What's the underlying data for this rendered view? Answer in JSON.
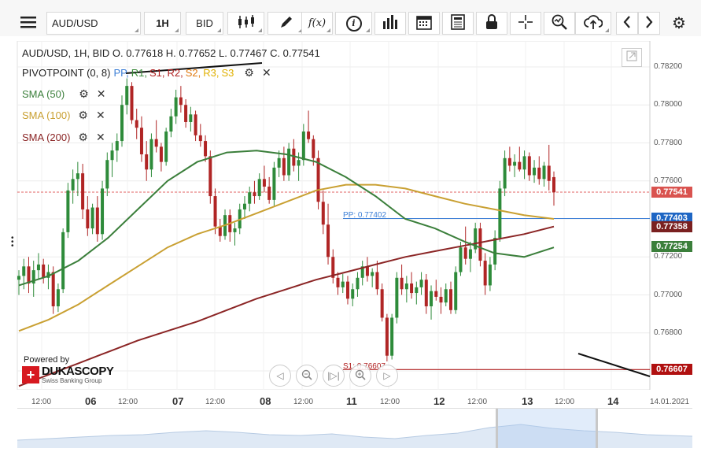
{
  "toolbar": {
    "symbol": "AUD/USD",
    "timeframe": "1H",
    "side": "BID",
    "fx_label": "f(x)",
    "info_label": "i"
  },
  "header": {
    "ohlc": "AUD/USD, 1H, BID   O. 0.77618 H. 0.77652 L. 0.77467 C. 0.77541"
  },
  "indicators": [
    {
      "prefix": "PIVOTPOINT (0, 8)",
      "parts": [
        "PP",
        "R1",
        "S1",
        "R2",
        "S2",
        "R3",
        "S3"
      ],
      "colors": [
        "#3d7fd6",
        "#3a8a3a",
        "#b02020",
        "#b02020",
        "#e07a10",
        "#e0b000",
        "#e0b000"
      ]
    },
    {
      "label": "SMA (50)",
      "color": "#3b7f3b"
    },
    {
      "label": "SMA (100)",
      "color": "#c9a032"
    },
    {
      "label": "SMA (200)",
      "color": "#8b2525"
    }
  ],
  "price_axis": [
    "0.78200",
    "0.78000",
    "0.77800",
    "0.77600",
    "0.77400",
    "0.77200",
    "0.77000",
    "0.76800",
    "0.76600"
  ],
  "price_labels": [
    {
      "value": "0.77541",
      "color": "#d9534f"
    },
    {
      "value": "0.77403",
      "color": "#1e66c4"
    },
    {
      "value": "0.77358",
      "color": "#7a2020"
    },
    {
      "value": "0.77254",
      "color": "#3b7f3b"
    },
    {
      "value": "0.76607",
      "color": "#b01010"
    }
  ],
  "pivot_labels": {
    "pp": "PP: 0.77402",
    "s1": "S1: 0.76607"
  },
  "date_axis": [
    {
      "text": "12:00",
      "bold": false
    },
    {
      "text": "06",
      "bold": true
    },
    {
      "text": "12:00",
      "bold": false
    },
    {
      "text": "07",
      "bold": true
    },
    {
      "text": "12:00",
      "bold": false
    },
    {
      "text": "08",
      "bold": true
    },
    {
      "text": "12:00",
      "bold": false
    },
    {
      "text": "11",
      "bold": true
    },
    {
      "text": "12:00",
      "bold": false
    },
    {
      "text": "12",
      "bold": true
    },
    {
      "text": "12:00",
      "bold": false
    },
    {
      "text": "13",
      "bold": true
    },
    {
      "text": "12:00",
      "bold": false
    },
    {
      "text": "14",
      "bold": true
    }
  ],
  "date_label": "14.01.2021",
  "logo": {
    "powered": "Powered by",
    "name": "DUKASCOPY",
    "tagline": "Swiss Banking Group"
  },
  "chart_data": {
    "type": "candlestick",
    "ylim": [
      0.7655,
      0.7825
    ],
    "candles": [
      [
        0.7708,
        0.7713,
        0.77,
        0.771
      ],
      [
        0.771,
        0.7719,
        0.7703,
        0.7715
      ],
      [
        0.7715,
        0.772,
        0.7701,
        0.7706
      ],
      [
        0.7706,
        0.7718,
        0.7699,
        0.7713
      ],
      [
        0.7713,
        0.7722,
        0.7708,
        0.7716
      ],
      [
        0.7716,
        0.7719,
        0.7706,
        0.7709
      ],
      [
        0.7709,
        0.7716,
        0.7703,
        0.7712
      ],
      [
        0.7712,
        0.7715,
        0.769,
        0.7694
      ],
      [
        0.7694,
        0.7706,
        0.7691,
        0.7703
      ],
      [
        0.7703,
        0.7735,
        0.7701,
        0.7733
      ],
      [
        0.7733,
        0.7759,
        0.773,
        0.7755
      ],
      [
        0.7755,
        0.7766,
        0.7748,
        0.7761
      ],
      [
        0.7761,
        0.777,
        0.7752,
        0.7764
      ],
      [
        0.7764,
        0.7769,
        0.774,
        0.7745
      ],
      [
        0.7745,
        0.7752,
        0.7731,
        0.7735
      ],
      [
        0.7735,
        0.7748,
        0.7732,
        0.7746
      ],
      [
        0.7746,
        0.7752,
        0.7728,
        0.7732
      ],
      [
        0.7732,
        0.776,
        0.7729,
        0.7756
      ],
      [
        0.7756,
        0.7775,
        0.7752,
        0.7771
      ],
      [
        0.7771,
        0.778,
        0.7762,
        0.7776
      ],
      [
        0.7776,
        0.7785,
        0.777,
        0.7781
      ],
      [
        0.7781,
        0.7805,
        0.7778,
        0.78
      ],
      [
        0.78,
        0.7814,
        0.7795,
        0.781
      ],
      [
        0.781,
        0.7812,
        0.779,
        0.7792
      ],
      [
        0.7792,
        0.7798,
        0.7782,
        0.7788
      ],
      [
        0.7788,
        0.7794,
        0.777,
        0.7774
      ],
      [
        0.7774,
        0.7781,
        0.776,
        0.7766
      ],
      [
        0.7766,
        0.7785,
        0.7762,
        0.7782
      ],
      [
        0.7782,
        0.7792,
        0.7775,
        0.7778
      ],
      [
        0.7778,
        0.778,
        0.7765,
        0.777
      ],
      [
        0.777,
        0.7788,
        0.7768,
        0.7786
      ],
      [
        0.7786,
        0.7798,
        0.7783,
        0.7794
      ],
      [
        0.7794,
        0.7808,
        0.779,
        0.7804
      ],
      [
        0.7804,
        0.781,
        0.7796,
        0.78
      ],
      [
        0.78,
        0.7803,
        0.7788,
        0.7791
      ],
      [
        0.7791,
        0.7799,
        0.7786,
        0.7795
      ],
      [
        0.7795,
        0.7797,
        0.7781,
        0.7784
      ],
      [
        0.7784,
        0.779,
        0.7778,
        0.7781
      ],
      [
        0.7781,
        0.7784,
        0.777,
        0.7773
      ],
      [
        0.7773,
        0.7776,
        0.7748,
        0.7752
      ],
      [
        0.7752,
        0.7756,
        0.7732,
        0.7736
      ],
      [
        0.7736,
        0.774,
        0.7728,
        0.7731
      ],
      [
        0.7731,
        0.7745,
        0.7729,
        0.7742
      ],
      [
        0.7742,
        0.7745,
        0.7728,
        0.7733
      ],
      [
        0.7733,
        0.7738,
        0.7726,
        0.7735
      ],
      [
        0.7735,
        0.7748,
        0.7732,
        0.7745
      ],
      [
        0.7745,
        0.7752,
        0.774,
        0.7748
      ],
      [
        0.7748,
        0.7757,
        0.7744,
        0.7754
      ],
      [
        0.7754,
        0.776,
        0.7748,
        0.7752
      ],
      [
        0.7752,
        0.7764,
        0.775,
        0.7761
      ],
      [
        0.7761,
        0.7768,
        0.7754,
        0.7757
      ],
      [
        0.7757,
        0.7762,
        0.7748,
        0.775
      ],
      [
        0.775,
        0.777,
        0.7747,
        0.7767
      ],
      [
        0.7767,
        0.7776,
        0.7762,
        0.7772
      ],
      [
        0.7772,
        0.7778,
        0.776,
        0.7763
      ],
      [
        0.7763,
        0.778,
        0.776,
        0.7777
      ],
      [
        0.7777,
        0.7782,
        0.7765,
        0.7768
      ],
      [
        0.7768,
        0.7775,
        0.776,
        0.7771
      ],
      [
        0.7771,
        0.779,
        0.7768,
        0.7786
      ],
      [
        0.7786,
        0.7797,
        0.778,
        0.7782
      ],
      [
        0.7782,
        0.7784,
        0.7768,
        0.7772
      ],
      [
        0.7772,
        0.7776,
        0.7745,
        0.7749
      ],
      [
        0.7749,
        0.7755,
        0.7732,
        0.7737
      ],
      [
        0.7737,
        0.7748,
        0.7716,
        0.772
      ],
      [
        0.772,
        0.7724,
        0.7706,
        0.7709
      ],
      [
        0.7709,
        0.7712,
        0.77,
        0.7704
      ],
      [
        0.7704,
        0.7711,
        0.7701,
        0.7707
      ],
      [
        0.7707,
        0.771,
        0.7695,
        0.7698
      ],
      [
        0.7698,
        0.7706,
        0.7694,
        0.7703
      ],
      [
        0.7703,
        0.7712,
        0.7699,
        0.7709
      ],
      [
        0.7709,
        0.7718,
        0.7705,
        0.7715
      ],
      [
        0.7715,
        0.772,
        0.7707,
        0.771
      ],
      [
        0.771,
        0.7714,
        0.7704,
        0.7712
      ],
      [
        0.7712,
        0.7718,
        0.77,
        0.7703
      ],
      [
        0.7703,
        0.7706,
        0.7686,
        0.7688
      ],
      [
        0.7688,
        0.769,
        0.7665,
        0.7668
      ],
      [
        0.7668,
        0.769,
        0.7666,
        0.7688
      ],
      [
        0.7688,
        0.7712,
        0.7685,
        0.7709
      ],
      [
        0.7709,
        0.7716,
        0.77,
        0.7703
      ],
      [
        0.7703,
        0.771,
        0.7696,
        0.7706
      ],
      [
        0.7706,
        0.7712,
        0.7698,
        0.7701
      ],
      [
        0.7701,
        0.7707,
        0.7695,
        0.7704
      ],
      [
        0.7704,
        0.7712,
        0.77,
        0.7708
      ],
      [
        0.7708,
        0.7711,
        0.769,
        0.7694
      ],
      [
        0.7694,
        0.7705,
        0.7687,
        0.7702
      ],
      [
        0.7702,
        0.7708,
        0.7697,
        0.7699
      ],
      [
        0.7699,
        0.7704,
        0.769,
        0.7696
      ],
      [
        0.7696,
        0.7706,
        0.7694,
        0.7703
      ],
      [
        0.7703,
        0.7707,
        0.769,
        0.7692
      ],
      [
        0.7692,
        0.7715,
        0.769,
        0.7712
      ],
      [
        0.7712,
        0.7728,
        0.771,
        0.7725
      ],
      [
        0.7725,
        0.7736,
        0.7716,
        0.7719
      ],
      [
        0.7719,
        0.7728,
        0.7712,
        0.7724
      ],
      [
        0.7724,
        0.7738,
        0.7722,
        0.7735
      ],
      [
        0.7735,
        0.7738,
        0.7715,
        0.7718
      ],
      [
        0.7718,
        0.7722,
        0.77,
        0.7705
      ],
      [
        0.7705,
        0.772,
        0.7702,
        0.7716
      ],
      [
        0.7716,
        0.7734,
        0.7713,
        0.773
      ],
      [
        0.773,
        0.776,
        0.7728,
        0.7756
      ],
      [
        0.7756,
        0.7776,
        0.7752,
        0.7772
      ],
      [
        0.7772,
        0.7778,
        0.7765,
        0.7768
      ],
      [
        0.7768,
        0.7774,
        0.7762,
        0.777
      ],
      [
        0.777,
        0.7778,
        0.7765,
        0.7766
      ],
      [
        0.7766,
        0.7776,
        0.7761,
        0.7773
      ],
      [
        0.7773,
        0.7775,
        0.776,
        0.7763
      ],
      [
        0.7763,
        0.7771,
        0.7759,
        0.7767
      ],
      [
        0.7767,
        0.7773,
        0.7758,
        0.7761
      ],
      [
        0.7761,
        0.777,
        0.7757,
        0.7768
      ],
      [
        0.7768,
        0.7779,
        0.7755,
        0.776
      ],
      [
        0.7762,
        0.7765,
        0.7747,
        0.7754
      ]
    ],
    "sma50": [
      0.7705,
      0.771,
      0.7718,
      0.773,
      0.7745,
      0.776,
      0.777,
      0.7775,
      0.7776,
      0.7774,
      0.777,
      0.7762,
      0.7752,
      0.774,
      0.7735,
      0.7728,
      0.7722,
      0.772,
      0.7725
    ],
    "sma100": [
      0.7681,
      0.7687,
      0.7695,
      0.7705,
      0.7715,
      0.7725,
      0.7732,
      0.7737,
      0.7743,
      0.7749,
      0.7755,
      0.7758,
      0.7758,
      0.7756,
      0.7752,
      0.7748,
      0.7745,
      0.7742,
      0.774
    ],
    "sma200": [
      0.7652,
      0.7658,
      0.7664,
      0.767,
      0.7676,
      0.7681,
      0.7686,
      0.7692,
      0.7698,
      0.7703,
      0.7708,
      0.7712,
      0.7716,
      0.772,
      0.7723,
      0.7726,
      0.7729,
      0.7732,
      0.7736
    ],
    "pp": 0.77402,
    "s1": 0.76607,
    "last_close": 0.77541
  }
}
